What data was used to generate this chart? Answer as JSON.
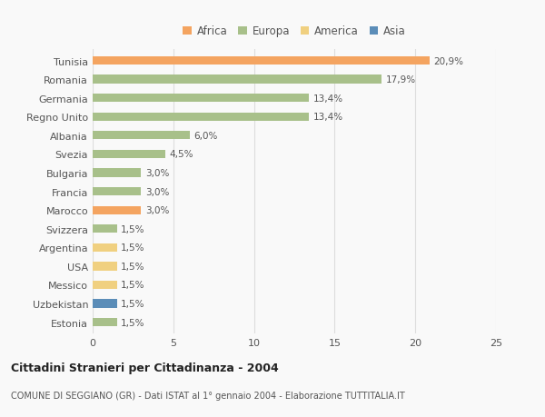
{
  "countries": [
    "Tunisia",
    "Romania",
    "Germania",
    "Regno Unito",
    "Albania",
    "Svezia",
    "Bulgaria",
    "Francia",
    "Marocco",
    "Svizzera",
    "Argentina",
    "USA",
    "Messico",
    "Uzbekistan",
    "Estonia"
  ],
  "values": [
    20.9,
    17.9,
    13.4,
    13.4,
    6.0,
    4.5,
    3.0,
    3.0,
    3.0,
    1.5,
    1.5,
    1.5,
    1.5,
    1.5,
    1.5
  ],
  "labels": [
    "20,9%",
    "17,9%",
    "13,4%",
    "13,4%",
    "6,0%",
    "4,5%",
    "3,0%",
    "3,0%",
    "3,0%",
    "1,5%",
    "1,5%",
    "1,5%",
    "1,5%",
    "1,5%",
    "1,5%"
  ],
  "continents": [
    "Africa",
    "Europa",
    "Europa",
    "Europa",
    "Europa",
    "Europa",
    "Europa",
    "Europa",
    "Africa",
    "Europa",
    "America",
    "America",
    "America",
    "Asia",
    "Europa"
  ],
  "continent_colors": {
    "Africa": "#F4A460",
    "Europa": "#A8C08A",
    "America": "#F0D080",
    "Asia": "#5B8DB8"
  },
  "legend_order": [
    "Africa",
    "Europa",
    "America",
    "Asia"
  ],
  "title": "Cittadini Stranieri per Cittadinanza - 2004",
  "subtitle": "COMUNE DI SEGGIANO (GR) - Dati ISTAT al 1° gennaio 2004 - Elaborazione TUTTITALIA.IT",
  "xlim": [
    0,
    25
  ],
  "xticks": [
    0,
    5,
    10,
    15,
    20,
    25
  ],
  "background_color": "#f9f9f9",
  "grid_color": "#dddddd",
  "bar_height": 0.45,
  "label_fontsize": 7.5,
  "tick_fontsize": 8,
  "legend_fontsize": 8.5
}
